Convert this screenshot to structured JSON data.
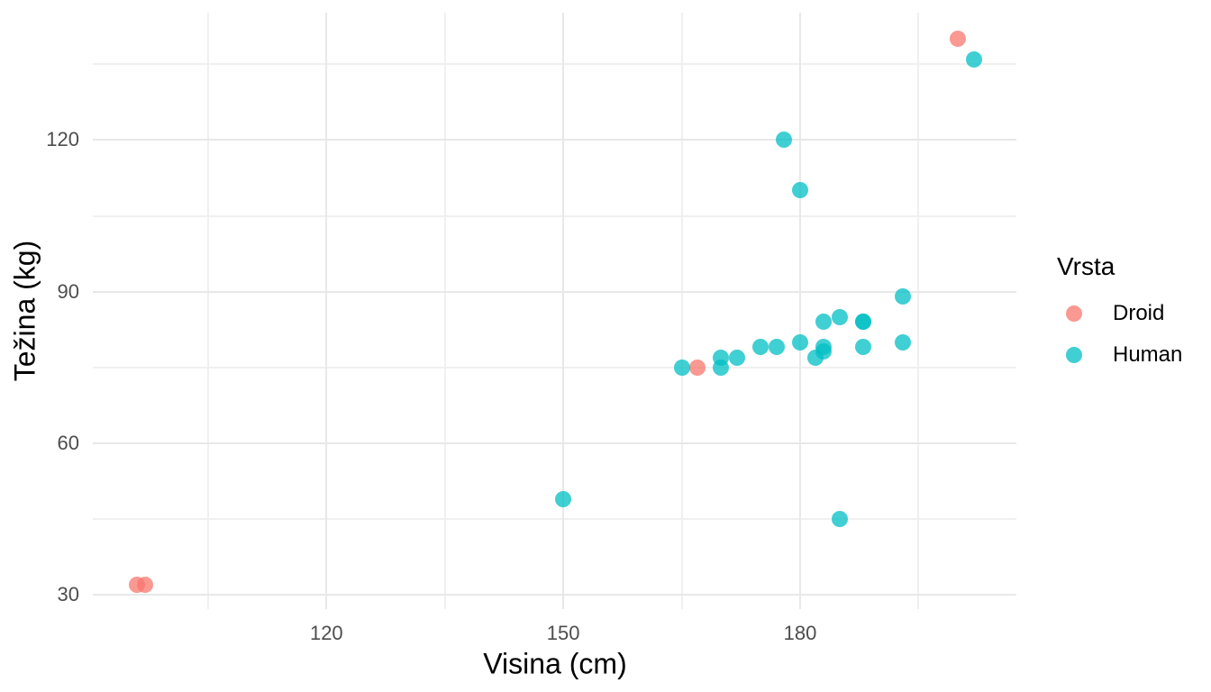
{
  "chart_data": {
    "type": "scatter",
    "title": "",
    "xlabel": "Visina (cm)",
    "ylabel": "Težina (kg)",
    "x_axis": {
      "ticks": [
        120,
        150,
        180
      ],
      "minor_ticks": [
        105,
        135,
        165,
        195
      ],
      "range": [
        90.4,
        207.4
      ]
    },
    "y_axis": {
      "ticks": [
        30,
        60,
        90,
        120
      ],
      "minor_ticks": [
        45,
        75,
        105,
        135
      ],
      "range": [
        27.2,
        145.2
      ]
    },
    "grid": {
      "show": true,
      "major_color": "#e8e8e8",
      "minor_color": "#f0f0f0"
    },
    "style": {
      "background": "#ffffff",
      "tick_label_color": "#4d4d4d",
      "axis_title_color": "#000000",
      "point_alpha": 0.75
    },
    "legend": {
      "title": "Vrsta",
      "position": "right",
      "entries": [
        {
          "label": "Droid",
          "color": "#F8766D"
        },
        {
          "label": "Human",
          "color": "#00BFC4"
        }
      ]
    },
    "series": [
      {
        "name": "Droid",
        "color": "#F8766D",
        "points": [
          [
            96,
            32
          ],
          [
            97,
            32
          ],
          [
            167,
            75
          ],
          [
            200,
            140
          ]
        ]
      },
      {
        "name": "Human",
        "color": "#00BFC4",
        "points": [
          [
            150,
            49
          ],
          [
            165,
            75
          ],
          [
            170,
            75
          ],
          [
            170,
            77
          ],
          [
            172,
            77
          ],
          [
            175,
            79
          ],
          [
            177,
            79
          ],
          [
            178,
            120
          ],
          [
            180,
            80
          ],
          [
            180,
            110
          ],
          [
            182,
            77
          ],
          [
            183,
            78.2
          ],
          [
            183,
            79
          ],
          [
            183,
            84
          ],
          [
            185,
            45
          ],
          [
            185,
            85
          ],
          [
            188,
            79
          ],
          [
            188,
            84
          ],
          [
            188,
            84
          ],
          [
            193,
            80
          ],
          [
            193,
            89
          ],
          [
            202,
            136
          ]
        ]
      }
    ]
  }
}
